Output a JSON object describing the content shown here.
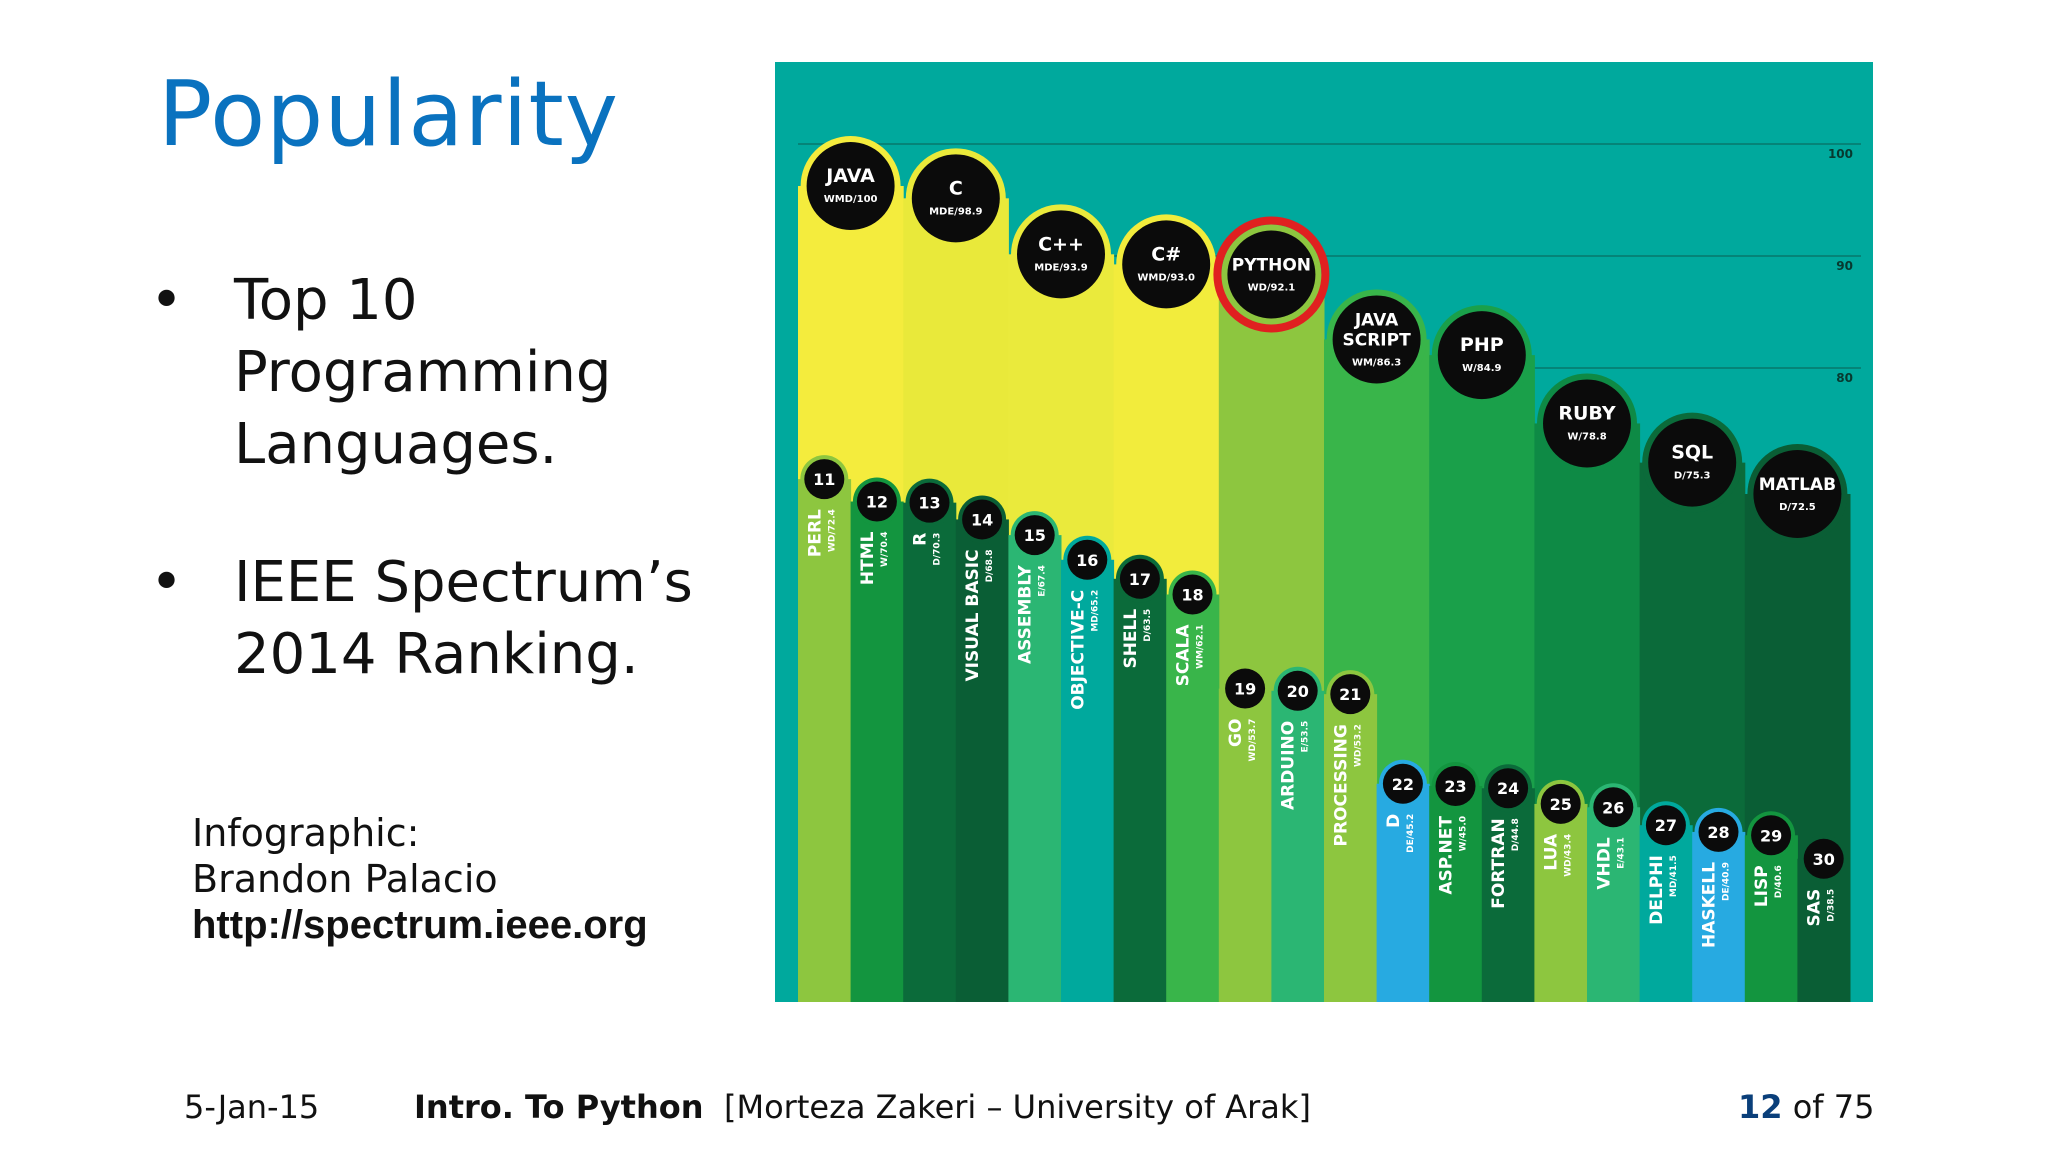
{
  "slide": {
    "title": "Popularity",
    "bullets": [
      {
        "dot": "•",
        "lines": [
          "Top 10",
          "Programming",
          "Languages."
        ]
      },
      {
        "dot": "•",
        "lines": [
          "IEEE Spectrum’s",
          "2014 Ranking."
        ]
      }
    ],
    "credit": {
      "line1": "Infographic:",
      "line2": "Brandon Palacio",
      "url": "http://spectrum.ieee.org"
    },
    "footer": {
      "date": "5-Jan-15",
      "course": "Intro. To Python",
      "author": "[Morteza Zakeri – University of Arak]",
      "page_current": "12",
      "page_total": "of 75"
    }
  },
  "colors": {
    "accent": "#0a72bf",
    "chart_bg": "#00a99d",
    "highlight": "#e02020",
    "bubble": "#0b0b0b"
  },
  "chart_data": {
    "type": "bar",
    "ylim": [
      30,
      100
    ],
    "yticks": [
      "100",
      "90",
      "80"
    ],
    "ytick_values": [
      100,
      90,
      80
    ],
    "top10": [
      {
        "name": "JAVA",
        "code": "WMD/100",
        "value": 100,
        "color": "#f4ec3d"
      },
      {
        "name": "C",
        "code": "MDE/98.9",
        "value": 98.9,
        "color": "#e9e93a"
      },
      {
        "name": "C++",
        "code": "MDE/93.9",
        "value": 93.9,
        "color": "#eaea3c"
      },
      {
        "name": "C#",
        "code": "WMD/93.0",
        "value": 93.0,
        "color": "#f2ec3c"
      },
      {
        "name": "PYTHON",
        "code": "WD/92.1",
        "value": 92.1,
        "color": "#8dc63f",
        "highlight": true
      },
      {
        "name": "JAVA SCRIPT",
        "code": "WM/86.3",
        "value": 86.3,
        "color": "#39b54a"
      },
      {
        "name": "PHP",
        "code": "W/84.9",
        "value": 84.9,
        "color": "#1aa04a"
      },
      {
        "name": "RUBY",
        "code": "W/78.8",
        "value": 78.8,
        "color": "#0e8a45"
      },
      {
        "name": "SQL",
        "code": "D/75.3",
        "value": 75.3,
        "color": "#0b6b3a"
      },
      {
        "name": "MATLAB",
        "code": "D/72.5",
        "value": 72.5,
        "color": "#0a5e35"
      }
    ],
    "others": [
      {
        "rank": "11",
        "name": "PERL",
        "code": "WD/72.4",
        "value": 72.4,
        "color": "#8dc63f"
      },
      {
        "rank": "12",
        "name": "HTML",
        "code": "W/70.4",
        "value": 70.4,
        "color": "#13953f"
      },
      {
        "rank": "13",
        "name": "R",
        "code": "D/70.3",
        "value": 70.3,
        "color": "#0b6b3a"
      },
      {
        "rank": "14",
        "name": "VISUAL BASIC",
        "code": "D/68.8",
        "value": 68.8,
        "color": "#0a5e35"
      },
      {
        "rank": "15",
        "name": "ASSEMBLY",
        "code": "E/67.4",
        "value": 67.4,
        "color": "#2bb673"
      },
      {
        "rank": "16",
        "name": "OBJECTIVE-C",
        "code": "MD/65.2",
        "value": 65.2,
        "color": "#00a99d"
      },
      {
        "rank": "17",
        "name": "SHELL",
        "code": "D/63.5",
        "value": 63.5,
        "color": "#0b6b3a"
      },
      {
        "rank": "18",
        "name": "SCALA",
        "code": "WM/62.1",
        "value": 62.1,
        "color": "#39b54a"
      },
      {
        "rank": "19",
        "name": "GO",
        "code": "WD/53.7",
        "value": 53.7,
        "color": "#8dc63f"
      },
      {
        "rank": "20",
        "name": "ARDUINO",
        "code": "E/53.5",
        "value": 53.5,
        "color": "#2bb673"
      },
      {
        "rank": "21",
        "name": "PROCESSING",
        "code": "WD/53.2",
        "value": 53.2,
        "color": "#8dc63f"
      },
      {
        "rank": "22",
        "name": "D",
        "code": "DE/45.2",
        "value": 45.2,
        "color": "#27aae1"
      },
      {
        "rank": "23",
        "name": "ASP.NET",
        "code": "W/45.0",
        "value": 45.0,
        "color": "#13953f"
      },
      {
        "rank": "24",
        "name": "FORTRAN",
        "code": "D/44.8",
        "value": 44.8,
        "color": "#0b6b3a"
      },
      {
        "rank": "25",
        "name": "LUA",
        "code": "WD/43.4",
        "value": 43.4,
        "color": "#8dc63f"
      },
      {
        "rank": "26",
        "name": "VHDL",
        "code": "E/43.1",
        "value": 43.1,
        "color": "#2bb673"
      },
      {
        "rank": "27",
        "name": "DELPHI",
        "code": "MD/41.5",
        "value": 41.5,
        "color": "#00a99d"
      },
      {
        "rank": "28",
        "name": "HASKELL",
        "code": "DE/40.9",
        "value": 40.9,
        "color": "#27aae1"
      },
      {
        "rank": "29",
        "name": "LISP",
        "code": "D/40.6",
        "value": 40.6,
        "color": "#13953f"
      },
      {
        "rank": "30",
        "name": "SAS",
        "code": "D/38.5",
        "value": 38.5,
        "color": "#0a5e35"
      }
    ]
  }
}
